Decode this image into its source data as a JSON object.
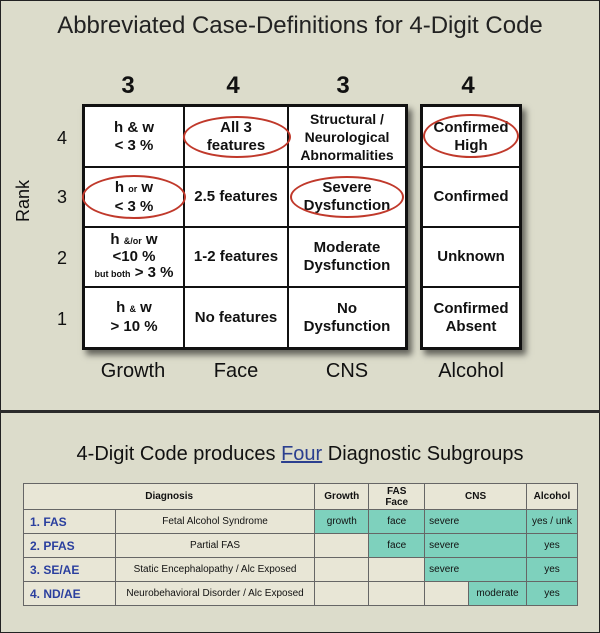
{
  "title": "Abbreviated Case-Definitions for 4-Digit Code",
  "code_digits": [
    "3",
    "4",
    "3",
    "4"
  ],
  "rank_axis": {
    "label": "Rank",
    "values": [
      "4",
      "3",
      "2",
      "1"
    ]
  },
  "columns": [
    "Growth",
    "Face",
    "CNS",
    "Alcohol"
  ],
  "rows": {
    "r4": {
      "growth": [
        "h & w",
        "< 3 %"
      ],
      "face": [
        "All 3",
        "features"
      ],
      "cns": [
        "Structural /",
        "Neurological",
        "Abnormalities"
      ],
      "alcohol": [
        "Confirmed",
        "High"
      ]
    },
    "r3": {
      "growth": [
        "h",
        "or",
        "w",
        "< 3 %"
      ],
      "face": [
        "2.5 features"
      ],
      "cns": [
        "Severe",
        "Dysfunction"
      ],
      "alcohol": [
        "Confirmed"
      ]
    },
    "r2": {
      "growth": [
        "h",
        "&/or",
        "w",
        "<10 %",
        "but both",
        "> 3 %"
      ],
      "face": [
        "1-2 features"
      ],
      "cns": [
        "Moderate",
        "Dysfunction"
      ],
      "alcohol": [
        "Unknown"
      ]
    },
    "r1": {
      "growth": [
        "h",
        "&",
        "w",
        "> 10 %"
      ],
      "face": [
        "No features"
      ],
      "cns": [
        "No",
        "Dysfunction"
      ],
      "alcohol": [
        "Confirmed",
        "Absent"
      ]
    }
  },
  "subtitle": {
    "pre": "4-Digit Code produces ",
    "emph": "Four",
    "post": " Diagnostic Subgroups"
  },
  "table": {
    "headers": {
      "diagnosis": "Diagnosis",
      "growth": "Growth",
      "fas_face": [
        "FAS",
        "Face"
      ],
      "cns": "CNS",
      "alcohol": "Alcohol"
    },
    "rows": [
      {
        "abbr": "1. FAS",
        "name": "Fetal Alcohol Syndrome",
        "growth": "growth",
        "face": "face",
        "cns": "severe",
        "alcohol": "yes / unk"
      },
      {
        "abbr": "2. PFAS",
        "name": "Partial FAS",
        "growth": "",
        "face": "face",
        "cns": "severe",
        "alcohol": "yes"
      },
      {
        "abbr": "3. SE/AE",
        "name": "Static Encephalopathy / Alc Exposed",
        "growth": "",
        "face": "",
        "cns": "severe",
        "alcohol": "yes"
      },
      {
        "abbr": "4. ND/AE",
        "name": "Neurobehavioral Disorder / Alc Exposed",
        "growth": "",
        "face": "",
        "cns": "moderate",
        "alcohol": "yes"
      }
    ]
  },
  "colors": {
    "highlight": "#7ed1bd",
    "oval": "#c0392b",
    "abbr_text": "#2a3f9e"
  }
}
